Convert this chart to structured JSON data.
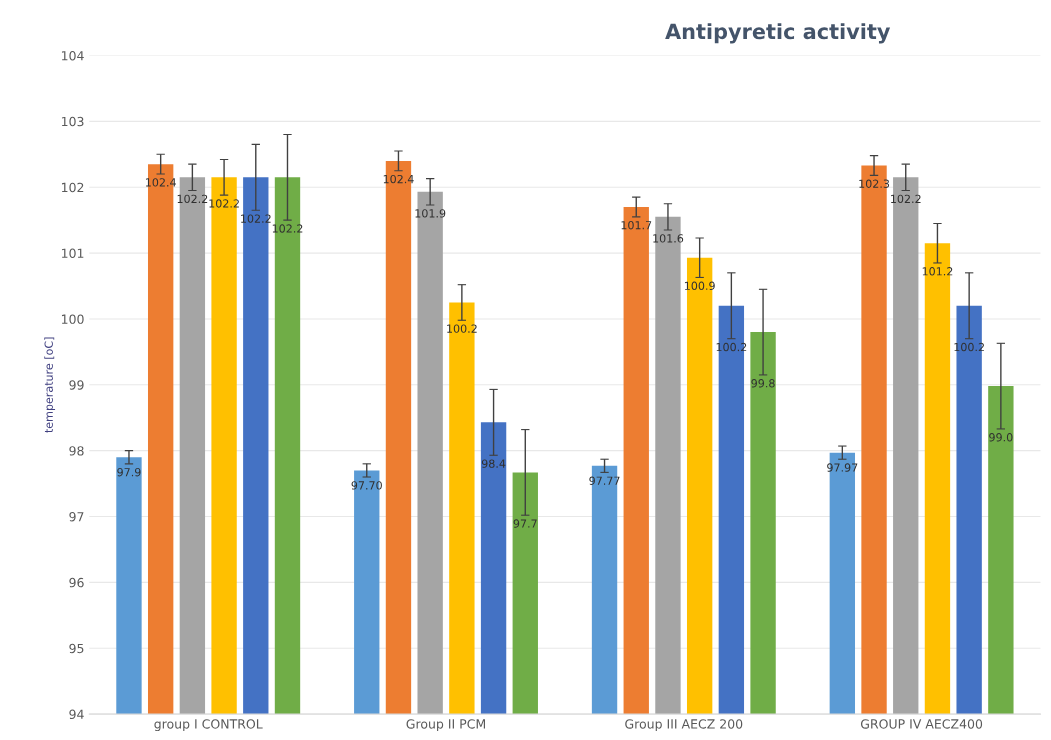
{
  "chart_data": {
    "type": "bar",
    "title": "Antipyretic activity",
    "ylabel": "temperature [oC]",
    "categories": [
      "group I CONTROL",
      "Group II PCM",
      "Group III AECZ 200",
      "GROUP IV AECZ400"
    ],
    "series": [
      {
        "color": "#5b9bd5",
        "values": [
          97.9,
          97.7,
          97.77,
          97.97
        ],
        "errors": [
          0.1,
          0.1,
          0.1,
          0.1
        ],
        "value_labels": [
          "97.9",
          "97.70",
          "97.77",
          "97.97"
        ]
      },
      {
        "color": "#ed7d31",
        "values": [
          102.35,
          102.4,
          101.7,
          102.33
        ],
        "errors": [
          0.15,
          0.15,
          0.15,
          0.15
        ],
        "value_labels": [
          "102.4",
          "102.4",
          "101.7",
          "102.3"
        ]
      },
      {
        "color": "#a5a5a5",
        "values": [
          102.15,
          101.93,
          101.55,
          102.15
        ],
        "errors": [
          0.2,
          0.2,
          0.2,
          0.2
        ],
        "value_labels": [
          "102.2",
          "101.9",
          "101.6",
          "102.2"
        ]
      },
      {
        "color": "#ffc000",
        "values": [
          102.15,
          100.25,
          100.93,
          101.15
        ],
        "errors": [
          0.27,
          0.27,
          0.3,
          0.3
        ],
        "value_labels": [
          "102.2",
          "100.2",
          "100.9",
          "101.2"
        ]
      },
      {
        "color": "#4472c4",
        "values": [
          102.15,
          98.43,
          100.2,
          100.2
        ],
        "errors": [
          0.5,
          0.5,
          0.5,
          0.5
        ],
        "value_labels": [
          "102.2",
          "98.4",
          "100.2",
          "100.2"
        ]
      },
      {
        "color": "#70ad47",
        "values": [
          102.15,
          97.67,
          99.8,
          98.98
        ],
        "errors": [
          0.65,
          0.65,
          0.65,
          0.65
        ],
        "value_labels": [
          "102.2",
          "97.7",
          "99.8",
          "99.0"
        ]
      }
    ],
    "ylim": [
      94,
      104
    ],
    "yticks": [
      94,
      95,
      96,
      97,
      98,
      99,
      100,
      101,
      102,
      103,
      104
    ],
    "grid": "y",
    "legend": false
  }
}
